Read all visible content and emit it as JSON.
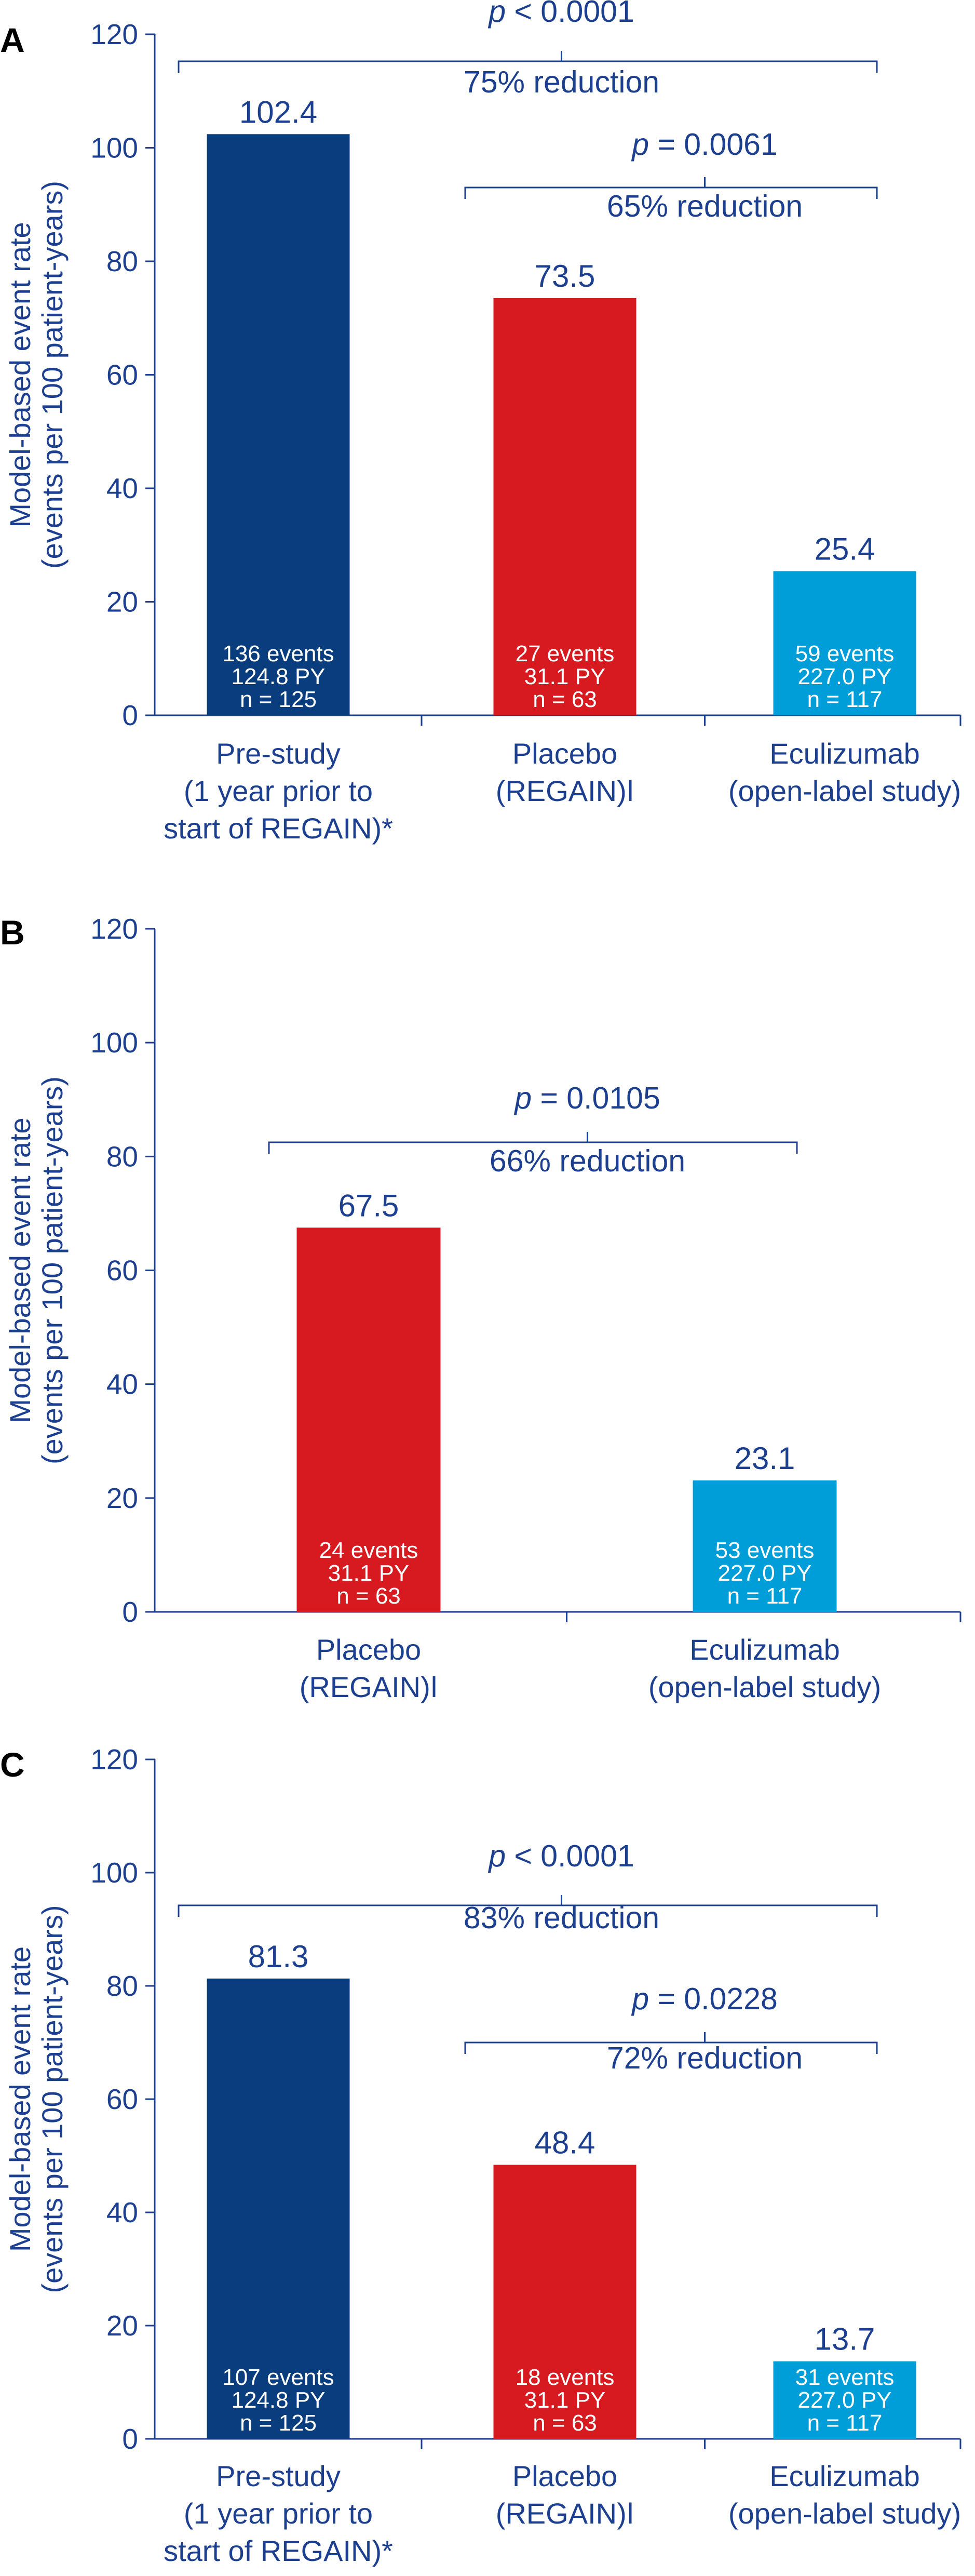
{
  "colors": {
    "text": "#1c3f8f",
    "axis": "#1c3f8f",
    "bar_prestudy": "#0a3d7d",
    "bar_placebo": "#d71920",
    "bar_eculizumab": "#009ed8"
  },
  "chart_data": [
    {
      "panel": "A",
      "type": "bar",
      "ylabel": [
        "Model-based event rate",
        "(events per 100 patient-years)"
      ],
      "ylim": [
        0,
        120
      ],
      "yticks": [
        0,
        20,
        40,
        60,
        80,
        100,
        120
      ],
      "categories": [
        [
          "Pre-study",
          "(1 year prior to",
          "start of REGAIN)*"
        ],
        [
          "Placebo",
          "(REGAIN)ǀ"
        ],
        [
          "Eculizumab",
          "(open-label study)"
        ]
      ],
      "values": [
        102.4,
        73.5,
        25.4
      ],
      "value_labels": [
        "102.4",
        "73.5",
        "25.4"
      ],
      "bar_colors": [
        "#0a3d7d",
        "#d71920",
        "#009ed8"
      ],
      "bar_text": [
        [
          "136 events",
          "124.8 PY",
          "n = 125"
        ],
        [
          "27 events",
          "31.1 PY",
          "n = 63"
        ],
        [
          "59 events",
          "227.0 PY",
          "n = 117"
        ]
      ],
      "comparisons": [
        {
          "from": 0,
          "to": 2,
          "p_text": " < 0.0001",
          "reduction": "75% reduction"
        },
        {
          "from": 1,
          "to": 2,
          "p_text": " = 0.0061",
          "reduction": "65% reduction"
        }
      ]
    },
    {
      "panel": "B",
      "type": "bar",
      "ylabel": [
        "Model-based event rate",
        "(events per 100 patient-years)"
      ],
      "ylim": [
        0,
        120
      ],
      "yticks": [
        0,
        20,
        40,
        60,
        80,
        100,
        120
      ],
      "categories": [
        [
          "Placebo",
          "(REGAIN)ǀ"
        ],
        [
          "Eculizumab",
          "(open-label study)"
        ]
      ],
      "values": [
        67.5,
        23.1
      ],
      "value_labels": [
        "67.5",
        "23.1"
      ],
      "bar_colors": [
        "#d71920",
        "#009ed8"
      ],
      "bar_text": [
        [
          "24 events",
          "31.1 PY",
          "n = 63"
        ],
        [
          "53 events",
          "227.0 PY",
          "n = 117"
        ]
      ],
      "comparisons": [
        {
          "from": 0,
          "to": 1,
          "p_text": " = 0.0105",
          "reduction": "66% reduction"
        }
      ]
    },
    {
      "panel": "C",
      "type": "bar",
      "ylabel": [
        "Model-based event rate",
        "(events per 100 patient-years)"
      ],
      "ylim": [
        0,
        120
      ],
      "yticks": [
        0,
        20,
        40,
        60,
        80,
        100,
        120
      ],
      "categories": [
        [
          "Pre-study",
          "(1 year prior to",
          "start of REGAIN)*"
        ],
        [
          "Placebo",
          "(REGAIN)ǀ"
        ],
        [
          "Eculizumab",
          "(open-label study)"
        ]
      ],
      "values": [
        81.3,
        48.4,
        13.7
      ],
      "value_labels": [
        "81.3",
        "48.4",
        "13.7"
      ],
      "bar_colors": [
        "#0a3d7d",
        "#d71920",
        "#009ed8"
      ],
      "bar_text": [
        [
          "107 events",
          "124.8 PY",
          "n = 125"
        ],
        [
          "18 events",
          "31.1 PY",
          "n = 63"
        ],
        [
          "31 events",
          "227.0 PY",
          "n = 117"
        ]
      ],
      "comparisons": [
        {
          "from": 0,
          "to": 2,
          "p_text": " < 0.0001",
          "reduction": "83% reduction"
        },
        {
          "from": 1,
          "to": 2,
          "p_text": " = 0.0228",
          "reduction": "72% reduction"
        }
      ]
    }
  ]
}
